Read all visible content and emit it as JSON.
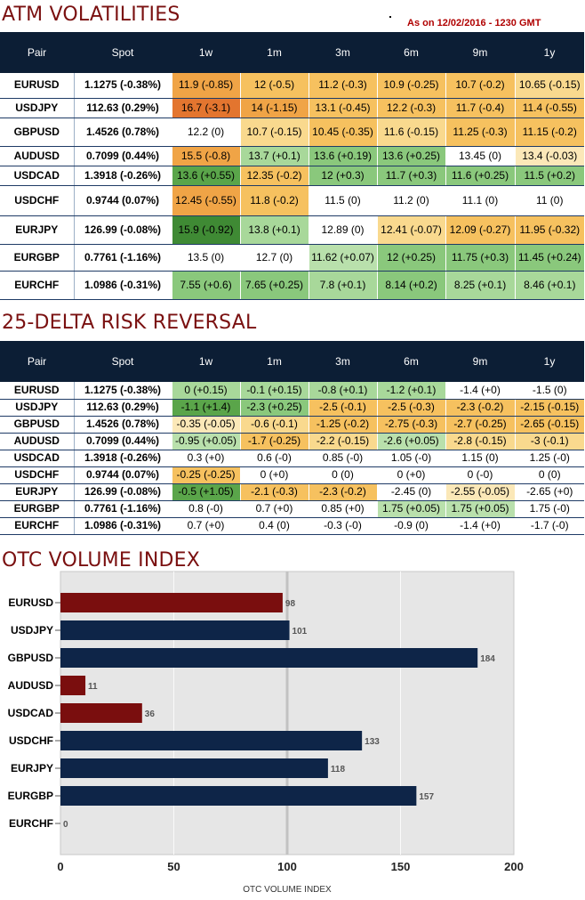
{
  "atm": {
    "title": "ATM VOLATILITIES",
    "as_of": "As on 12/02/2016 - 1230 GMT",
    "headers": [
      "Pair",
      "Spot",
      "1w",
      "1m",
      "3m",
      "6m",
      "9m",
      "1y"
    ],
    "rows": [
      {
        "pair": "EURUSD",
        "spot": "1.1275 (-0.38%)",
        "cells": [
          [
            "11.9 (-0.85)",
            "#f0a446"
          ],
          [
            "12 (-0.5)",
            "#f6c15f"
          ],
          [
            "11.2 (-0.3)",
            "#f6c15f"
          ],
          [
            "10.9 (-0.25)",
            "#f6c15f"
          ],
          [
            "10.7 (-0.2)",
            "#f6c15f"
          ],
          [
            "10.65 (-0.15)",
            "#f9d98e"
          ]
        ]
      },
      {
        "pair": "USDJPY",
        "spot": "112.63 (0.29%)",
        "cells": [
          [
            "16.7 (-3.1)",
            "#e3752f"
          ],
          [
            "14 (-1.15)",
            "#f0a446"
          ],
          [
            "13.1 (-0.45)",
            "#f6c15f"
          ],
          [
            "12.2 (-0.3)",
            "#f6c15f"
          ],
          [
            "11.7 (-0.4)",
            "#f6c15f"
          ],
          [
            "11.4 (-0.55)",
            "#f6c15f"
          ]
        ]
      },
      {
        "pair": "GBPUSD",
        "spot": "1.4526 (0.78%)",
        "cells": [
          [
            "12.2 (0)",
            "#ffffff"
          ],
          [
            "10.7 (-0.15)",
            "#f9d98e"
          ],
          [
            "10.45 (-0.35)",
            "#f6c15f"
          ],
          [
            "11.6 (-0.15)",
            "#f9d98e"
          ],
          [
            "11.25 (-0.3)",
            "#f6c15f"
          ],
          [
            "11.15 (-0.2)",
            "#f6c15f"
          ]
        ]
      },
      {
        "pair": "AUDUSD",
        "spot": "0.7099 (0.44%)",
        "cells": [
          [
            "15.5 (-0.8)",
            "#f0a446"
          ],
          [
            "13.7 (+0.1)",
            "#a8d89a"
          ],
          [
            "13.6 (+0.19)",
            "#8ac87c"
          ],
          [
            "13.6 (+0.25)",
            "#8ac87c"
          ],
          [
            "13.45 (0)",
            "#ffffff"
          ],
          [
            "13.4 (-0.03)",
            "#fbe8b8"
          ]
        ]
      },
      {
        "pair": "USDCAD",
        "spot": "1.3918 (-0.26%)",
        "cells": [
          [
            "13.6 (+0.55)",
            "#5aa54a"
          ],
          [
            "12.35 (-0.2)",
            "#f6c15f"
          ],
          [
            "12 (+0.3)",
            "#8ac87c"
          ],
          [
            "11.7 (+0.3)",
            "#8ac87c"
          ],
          [
            "11.6 (+0.25)",
            "#8ac87c"
          ],
          [
            "11.5 (+0.2)",
            "#8ac87c"
          ]
        ]
      },
      {
        "pair": "USDCHF",
        "spot": "0.9744 (0.07%)",
        "cells": [
          [
            "12.45 (-0.55)",
            "#f0a446"
          ],
          [
            "11.8 (-0.2)",
            "#f6c15f"
          ],
          [
            "11.5 (0)",
            "#ffffff"
          ],
          [
            "11.2 (0)",
            "#ffffff"
          ],
          [
            "11.1 (0)",
            "#ffffff"
          ],
          [
            "11 (0)",
            "#ffffff"
          ]
        ]
      },
      {
        "pair": "EURJPY",
        "spot": "126.99 (-0.08%)",
        "cells": [
          [
            "15.9 (-0.92)",
            "#3f8a34"
          ],
          [
            "13.8 (+0.1)",
            "#a8d89a"
          ],
          [
            "12.89 (0)",
            "#ffffff"
          ],
          [
            "12.41 (-0.07)",
            "#f9d98e"
          ],
          [
            "12.09 (-0.27)",
            "#f6c15f"
          ],
          [
            "11.95 (-0.32)",
            "#f6c15f"
          ]
        ]
      },
      {
        "pair": "EURGBP",
        "spot": "0.7761 (-1.16%)",
        "cells": [
          [
            "13.5 (0)",
            "#ffffff"
          ],
          [
            "12.7 (0)",
            "#ffffff"
          ],
          [
            "11.62 (+0.07)",
            "#b9e0ac"
          ],
          [
            "12 (+0.25)",
            "#8ac87c"
          ],
          [
            "11.75 (+0.3)",
            "#8ac87c"
          ],
          [
            "11.45 (+0.24)",
            "#8ac87c"
          ]
        ]
      },
      {
        "pair": "EURCHF",
        "spot": "1.0986 (-0.31%)",
        "cells": [
          [
            "7.55 (+0.6)",
            "#8ac87c"
          ],
          [
            "7.65 (+0.25)",
            "#8ac87c"
          ],
          [
            "7.8 (+0.1)",
            "#a8d89a"
          ],
          [
            "8.14 (+0.2)",
            "#8ac87c"
          ],
          [
            "8.25 (+0.1)",
            "#a8d89a"
          ],
          [
            "8.46 (+0.1)",
            "#a8d89a"
          ]
        ]
      }
    ]
  },
  "rr": {
    "title": "25-DELTA RISK REVERSAL",
    "headers": [
      "Pair",
      "Spot",
      "1w",
      "1m",
      "3m",
      "6m",
      "9m",
      "1y"
    ],
    "rows": [
      {
        "pair": "EURUSD",
        "spot": "1.1275 (-0.38%)",
        "cells": [
          [
            "0 (+0.15)",
            "#a8d89a"
          ],
          [
            "-0.1 (+0.15)",
            "#a8d89a"
          ],
          [
            "-0.8 (+0.1)",
            "#a8d89a"
          ],
          [
            "-1.2 (+0.1)",
            "#a8d89a"
          ],
          [
            "-1.4 (+0)",
            "#ffffff"
          ],
          [
            "-1.5 (0)",
            "#ffffff"
          ]
        ]
      },
      {
        "pair": "USDJPY",
        "spot": "112.63 (0.29%)",
        "cells": [
          [
            "-1.1 (+1.4)",
            "#5aa54a"
          ],
          [
            "-2.3 (+0.25)",
            "#8ac87c"
          ],
          [
            "-2.5 (-0.1)",
            "#f6c15f"
          ],
          [
            "-2.5 (-0.3)",
            "#f6c15f"
          ],
          [
            "-2.3 (-0.2)",
            "#f6c15f"
          ],
          [
            "-2.15 (-0.15)",
            "#f6c15f"
          ]
        ]
      },
      {
        "pair": "GBPUSD",
        "spot": "1.4526 (0.78%)",
        "cells": [
          [
            "-0.35 (-0.05)",
            "#fbe8b8"
          ],
          [
            "-0.6 (-0.1)",
            "#f9d98e"
          ],
          [
            "-1.25 (-0.2)",
            "#f6c15f"
          ],
          [
            "-2.75 (-0.3)",
            "#f6c15f"
          ],
          [
            "-2.7 (-0.25)",
            "#f6c15f"
          ],
          [
            "-2.65 (-0.15)",
            "#f6c15f"
          ]
        ]
      },
      {
        "pair": "AUDUSD",
        "spot": "0.7099 (0.44%)",
        "cells": [
          [
            "-0.95 (+0.05)",
            "#b9e0ac"
          ],
          [
            "-1.7 (-0.25)",
            "#f6c15f"
          ],
          [
            "-2.2 (-0.15)",
            "#f9d98e"
          ],
          [
            "-2.6 (+0.05)",
            "#b9e0ac"
          ],
          [
            "-2.8 (-0.15)",
            "#f9d98e"
          ],
          [
            "-3 (-0.1)",
            "#f9d98e"
          ]
        ]
      },
      {
        "pair": "USDCAD",
        "spot": "1.3918 (-0.26%)",
        "cells": [
          [
            "0.3 (+0)",
            "#ffffff"
          ],
          [
            "0.6 (-0)",
            "#ffffff"
          ],
          [
            "0.85 (-0)",
            "#ffffff"
          ],
          [
            "1.05 (-0)",
            "#ffffff"
          ],
          [
            "1.15 (0)",
            "#ffffff"
          ],
          [
            "1.25 (-0)",
            "#ffffff"
          ]
        ]
      },
      {
        "pair": "USDCHF",
        "spot": "0.9744 (0.07%)",
        "cells": [
          [
            "-0.25 (-0.25)",
            "#f6c15f"
          ],
          [
            "0 (+0)",
            "#ffffff"
          ],
          [
            "0 (0)",
            "#ffffff"
          ],
          [
            "0 (+0)",
            "#ffffff"
          ],
          [
            "0 (-0)",
            "#ffffff"
          ],
          [
            "0 (0)",
            "#ffffff"
          ]
        ]
      },
      {
        "pair": "EURJPY",
        "spot": "126.99 (-0.08%)",
        "cells": [
          [
            "-0.5 (+1.05)",
            "#5aa54a"
          ],
          [
            "-2.1 (-0.3)",
            "#f6c15f"
          ],
          [
            "-2.3 (-0.2)",
            "#f6c15f"
          ],
          [
            "-2.45 (0)",
            "#ffffff"
          ],
          [
            "-2.55 (-0.05)",
            "#fbe8b8"
          ],
          [
            "-2.65 (+0)",
            "#ffffff"
          ]
        ]
      },
      {
        "pair": "EURGBP",
        "spot": "0.7761 (-1.16%)",
        "cells": [
          [
            "0.8 (-0)",
            "#ffffff"
          ],
          [
            "0.7 (+0)",
            "#ffffff"
          ],
          [
            "0.85 (+0)",
            "#ffffff"
          ],
          [
            "1.75 (+0.05)",
            "#b9e0ac"
          ],
          [
            "1.75 (+0.05)",
            "#b9e0ac"
          ],
          [
            "1.75 (-0)",
            "#ffffff"
          ]
        ]
      },
      {
        "pair": "EURCHF",
        "spot": "1.0986 (-0.31%)",
        "cells": [
          [
            "0.7 (+0)",
            "#ffffff"
          ],
          [
            "0.4 (0)",
            "#ffffff"
          ],
          [
            "-0.3 (-0)",
            "#ffffff"
          ],
          [
            "-0.9 (0)",
            "#ffffff"
          ],
          [
            "-1.4 (+0)",
            "#ffffff"
          ],
          [
            "-1.7 (-0)",
            "#ffffff"
          ]
        ]
      }
    ]
  },
  "otc": {
    "title": "OTC VOLUME INDEX"
  },
  "colors": {
    "header_bg": "#0c1e35",
    "title": "#7a1010",
    "bar_navy": "#0e2548",
    "bar_red": "#7a0e0e"
  },
  "chart_data": {
    "type": "bar",
    "orientation": "horizontal",
    "categories": [
      "EURUSD",
      "USDJPY",
      "GBPUSD",
      "AUDUSD",
      "USDCAD",
      "USDCHF",
      "EURJPY",
      "EURGBP",
      "EURCHF"
    ],
    "values": [
      98,
      101,
      184,
      11,
      36,
      133,
      118,
      157,
      0
    ],
    "bar_colors": [
      "#7a0e0e",
      "#0e2548",
      "#0e2548",
      "#7a0e0e",
      "#7a0e0e",
      "#0e2548",
      "#0e2548",
      "#0e2548",
      "#0e2548"
    ],
    "xlabel": "OTC VOLUME INDEX",
    "xlim": [
      0,
      200
    ],
    "xticks": [
      0,
      50,
      100,
      150,
      200
    ],
    "grid": true,
    "data_labels": true
  }
}
